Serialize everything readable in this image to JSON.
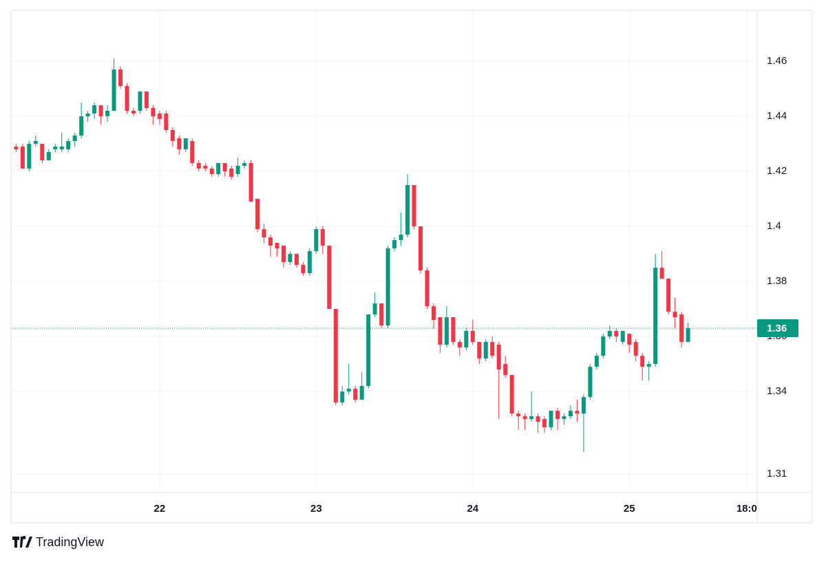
{
  "chart_data": {
    "type": "candlestick",
    "x": [
      2,
      3,
      4,
      5,
      6,
      7,
      8,
      9,
      10,
      11,
      12,
      13,
      14,
      15,
      16,
      17,
      18,
      19,
      20,
      21,
      22,
      23,
      24,
      25,
      26,
      27,
      28,
      29,
      30,
      31,
      32,
      33,
      34,
      35,
      36,
      37,
      38,
      39,
      40,
      41,
      42,
      43,
      44,
      45,
      46,
      47,
      48,
      49,
      50,
      51,
      52,
      53,
      54,
      55,
      56,
      57,
      58,
      59,
      60,
      61,
      62,
      63,
      64,
      65,
      66,
      67,
      68,
      69,
      70,
      71,
      72,
      73,
      74,
      75,
      76,
      77,
      78,
      79,
      80,
      81,
      82,
      83,
      84,
      85,
      86,
      87,
      88,
      89,
      90,
      91,
      92,
      93,
      94,
      95,
      96,
      97,
      98,
      99,
      100,
      101,
      102,
      103,
      104,
      105
    ],
    "open": [
      1.429,
      1.429,
      1.421,
      1.43,
      1.43,
      1.424,
      1.428,
      1.428,
      1.428,
      1.431,
      1.433,
      1.44,
      1.441,
      1.444,
      1.44,
      1.442,
      1.457,
      1.451,
      1.442,
      1.442,
      1.449,
      1.443,
      1.441,
      1.441,
      1.435,
      1.432,
      1.428,
      1.431,
      1.423,
      1.422,
      1.421,
      1.419,
      1.423,
      1.421,
      1.419,
      1.422,
      1.423,
      1.41,
      1.399,
      1.396,
      1.394,
      1.393,
      1.387,
      1.39,
      1.386,
      1.383,
      1.391,
      1.399,
      1.393,
      1.37,
      1.336,
      1.34,
      1.341,
      1.337,
      1.342,
      1.368,
      1.372,
      1.364,
      1.392,
      1.395,
      1.397,
      1.415,
      1.4,
      1.384,
      1.371,
      1.367,
      1.357,
      1.367,
      1.358,
      1.356,
      1.362,
      1.358,
      1.352,
      1.358,
      1.357,
      1.35,
      1.346,
      1.332,
      1.331,
      1.33,
      1.331,
      1.33,
      1.327,
      1.333,
      1.33,
      1.331,
      1.333,
      1.332,
      1.338,
      1.349,
      1.353,
      1.36,
      1.362,
      1.358,
      1.361,
      1.358,
      1.353,
      1.349,
      1.35,
      1.385,
      1.381,
      1.369,
      1.368,
      1.358
    ],
    "high": [
      1.43,
      1.43,
      1.431,
      1.433,
      1.43,
      1.428,
      1.43,
      1.434,
      1.432,
      1.434,
      1.445,
      1.442,
      1.445,
      1.444,
      1.444,
      1.461,
      1.458,
      1.452,
      1.443,
      1.449,
      1.449,
      1.444,
      1.442,
      1.442,
      1.436,
      1.433,
      1.432,
      1.432,
      1.424,
      1.423,
      1.422,
      1.423,
      1.423,
      1.422,
      1.425,
      1.424,
      1.424,
      1.41,
      1.401,
      1.397,
      1.394,
      1.393,
      1.391,
      1.39,
      1.387,
      1.392,
      1.4,
      1.4,
      1.393,
      1.37,
      1.342,
      1.35,
      1.342,
      1.347,
      1.368,
      1.376,
      1.372,
      1.393,
      1.396,
      1.405,
      1.419,
      1.415,
      1.4,
      1.385,
      1.372,
      1.367,
      1.371,
      1.367,
      1.359,
      1.363,
      1.366,
      1.358,
      1.359,
      1.36,
      1.358,
      1.353,
      1.346,
      1.333,
      1.332,
      1.34,
      1.332,
      1.331,
      1.333,
      1.334,
      1.332,
      1.335,
      1.337,
      1.339,
      1.35,
      1.354,
      1.361,
      1.364,
      1.363,
      1.362,
      1.361,
      1.359,
      1.354,
      1.351,
      1.39,
      1.391,
      1.381,
      1.374,
      1.369,
      1.365
    ],
    "low": [
      1.427,
      1.421,
      1.42,
      1.429,
      1.423,
      1.424,
      1.427,
      1.427,
      1.427,
      1.429,
      1.432,
      1.438,
      1.439,
      1.437,
      1.438,
      1.442,
      1.45,
      1.441,
      1.44,
      1.441,
      1.442,
      1.437,
      1.437,
      1.434,
      1.429,
      1.426,
      1.427,
      1.422,
      1.42,
      1.42,
      1.418,
      1.418,
      1.418,
      1.417,
      1.418,
      1.421,
      1.409,
      1.398,
      1.394,
      1.389,
      1.389,
      1.385,
      1.386,
      1.385,
      1.382,
      1.382,
      1.39,
      1.39,
      1.37,
      1.335,
      1.335,
      1.339,
      1.336,
      1.337,
      1.341,
      1.367,
      1.363,
      1.363,
      1.391,
      1.393,
      1.396,
      1.399,
      1.383,
      1.37,
      1.363,
      1.354,
      1.356,
      1.357,
      1.353,
      1.355,
      1.357,
      1.35,
      1.351,
      1.352,
      1.33,
      1.345,
      1.331,
      1.326,
      1.326,
      1.329,
      1.325,
      1.325,
      1.326,
      1.326,
      1.328,
      1.33,
      1.329,
      1.318,
      1.337,
      1.348,
      1.352,
      1.359,
      1.358,
      1.357,
      1.354,
      1.351,
      1.344,
      1.344,
      1.349,
      1.381,
      1.368,
      1.363,
      1.356,
      1.358
    ],
    "close": [
      1.428,
      1.421,
      1.43,
      1.431,
      1.424,
      1.427,
      1.429,
      1.429,
      1.431,
      1.433,
      1.44,
      1.441,
      1.444,
      1.44,
      1.442,
      1.457,
      1.451,
      1.442,
      1.441,
      1.449,
      1.443,
      1.44,
      1.439,
      1.435,
      1.431,
      1.428,
      1.432,
      1.423,
      1.421,
      1.421,
      1.419,
      1.423,
      1.42,
      1.418,
      1.422,
      1.423,
      1.409,
      1.399,
      1.396,
      1.393,
      1.392,
      1.387,
      1.39,
      1.386,
      1.383,
      1.391,
      1.399,
      1.393,
      1.37,
      1.336,
      1.34,
      1.341,
      1.337,
      1.342,
      1.368,
      1.372,
      1.364,
      1.392,
      1.395,
      1.397,
      1.415,
      1.4,
      1.384,
      1.371,
      1.366,
      1.357,
      1.367,
      1.358,
      1.356,
      1.362,
      1.358,
      1.352,
      1.358,
      1.353,
      1.348,
      1.346,
      1.332,
      1.331,
      1.33,
      1.331,
      1.329,
      1.327,
      1.333,
      1.33,
      1.331,
      1.333,
      1.332,
      1.338,
      1.349,
      1.353,
      1.36,
      1.362,
      1.36,
      1.362,
      1.357,
      1.353,
      1.349,
      1.35,
      1.385,
      1.381,
      1.369,
      1.367,
      1.358,
      1.363
    ],
    "xlim": [
      1.22,
      115.6
    ],
    "xticks": [
      {
        "value": 24,
        "label": "22"
      },
      {
        "value": 48,
        "label": "23"
      },
      {
        "value": 72,
        "label": "24"
      },
      {
        "value": 96,
        "label": "25"
      },
      {
        "value": 114,
        "label": "18:0"
      }
    ],
    "ylim": [
      1.3033,
      1.4785
    ],
    "yticks": [
      1.31,
      1.34,
      1.36,
      1.38,
      1.4,
      1.42,
      1.44,
      1.46
    ],
    "up_color": "#089981",
    "down_color": "#f23645",
    "grid": true,
    "last_price": {
      "value": 1.363,
      "label": "1.36"
    }
  },
  "brand": "TradingView"
}
